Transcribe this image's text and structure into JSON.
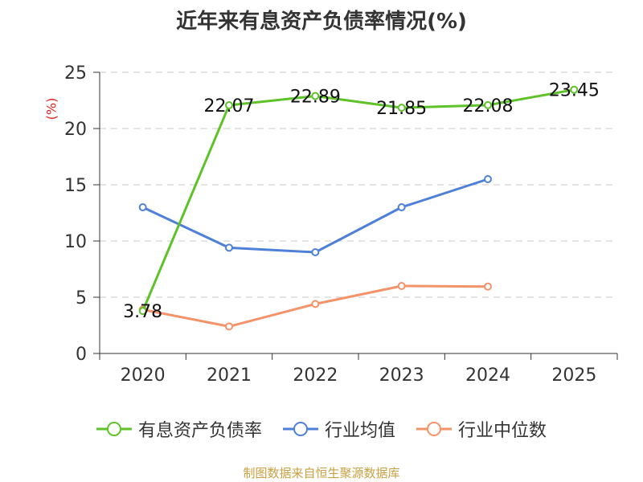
{
  "title": "近年来有息资产负债率情况(%)",
  "source": "制图数据来自恒生聚源数据库",
  "chart_data": {
    "type": "line",
    "title": "近年来有息资产负债率情况(%)",
    "ylabel": "(%)",
    "xlabel": "",
    "categories": [
      "2020",
      "2021",
      "2022",
      "2023",
      "2024",
      "2025"
    ],
    "ylim": [
      0,
      25
    ],
    "yticks": [
      0,
      5,
      10,
      15,
      20,
      25
    ],
    "grid": true,
    "legend_position": "bottom",
    "series": [
      {
        "name": "有息资产负债率",
        "color": "#5ec228",
        "values": [
          3.78,
          22.07,
          22.89,
          21.85,
          22.08,
          23.45
        ],
        "labels": [
          "3.78",
          "22.07",
          "22.89",
          "21.85",
          "22.08",
          "23.45"
        ]
      },
      {
        "name": "行业均值",
        "color": "#4f80d8",
        "values": [
          13.0,
          9.4,
          9.0,
          13.0,
          15.5,
          null
        ]
      },
      {
        "name": "行业中位数",
        "color": "#f4926a",
        "values": [
          3.9,
          2.4,
          4.4,
          6.0,
          5.95,
          null
        ]
      }
    ]
  }
}
